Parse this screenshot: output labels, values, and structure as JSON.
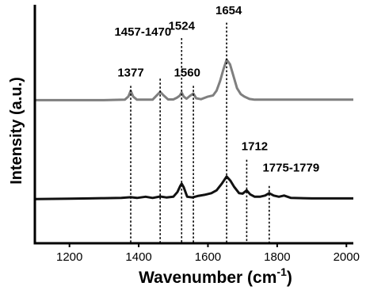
{
  "chart_data": {
    "type": "line",
    "xlabel": "Wavenumber (cm",
    "xlabel_superscript": "-1",
    "xlabel_suffix": ")",
    "ylabel": "Intensity (a.u.)",
    "xlim": [
      1100,
      2020
    ],
    "x_ticks": [
      1200,
      1400,
      1600,
      1800,
      2000
    ],
    "y_ticks": [],
    "grid": false,
    "legend": "none",
    "series": [
      {
        "color": "#7f7f7f",
        "points": [
          [
            1100,
            0.6
          ],
          [
            1300,
            0.6
          ],
          [
            1360,
            0.602
          ],
          [
            1370,
            0.615
          ],
          [
            1377,
            0.64
          ],
          [
            1384,
            0.615
          ],
          [
            1395,
            0.602
          ],
          [
            1440,
            0.602
          ],
          [
            1452,
            0.62
          ],
          [
            1462,
            0.635
          ],
          [
            1472,
            0.62
          ],
          [
            1485,
            0.603
          ],
          [
            1500,
            0.603
          ],
          [
            1510,
            0.61
          ],
          [
            1518,
            0.618
          ],
          [
            1524,
            0.632
          ],
          [
            1530,
            0.615
          ],
          [
            1538,
            0.606
          ],
          [
            1548,
            0.618
          ],
          [
            1558,
            0.628
          ],
          [
            1566,
            0.608
          ],
          [
            1580,
            0.604
          ],
          [
            1600,
            0.615
          ],
          [
            1615,
            0.62
          ],
          [
            1625,
            0.64
          ],
          [
            1635,
            0.68
          ],
          [
            1645,
            0.73
          ],
          [
            1654,
            0.77
          ],
          [
            1664,
            0.75
          ],
          [
            1674,
            0.7
          ],
          [
            1684,
            0.65
          ],
          [
            1695,
            0.625
          ],
          [
            1705,
            0.615
          ],
          [
            1720,
            0.605
          ],
          [
            1735,
            0.602
          ],
          [
            1800,
            0.602
          ],
          [
            2020,
            0.602
          ]
        ]
      },
      {
        "color": "#111111",
        "points": [
          [
            1100,
            0.185
          ],
          [
            1200,
            0.187
          ],
          [
            1260,
            0.188
          ],
          [
            1300,
            0.189
          ],
          [
            1350,
            0.19
          ],
          [
            1377,
            0.193
          ],
          [
            1395,
            0.19
          ],
          [
            1420,
            0.195
          ],
          [
            1440,
            0.19
          ],
          [
            1462,
            0.196
          ],
          [
            1480,
            0.192
          ],
          [
            1500,
            0.195
          ],
          [
            1512,
            0.215
          ],
          [
            1520,
            0.24
          ],
          [
            1524,
            0.25
          ],
          [
            1530,
            0.235
          ],
          [
            1540,
            0.195
          ],
          [
            1555,
            0.192
          ],
          [
            1570,
            0.198
          ],
          [
            1590,
            0.203
          ],
          [
            1610,
            0.21
          ],
          [
            1625,
            0.222
          ],
          [
            1640,
            0.25
          ],
          [
            1654,
            0.28
          ],
          [
            1665,
            0.262
          ],
          [
            1675,
            0.238
          ],
          [
            1690,
            0.21
          ],
          [
            1700,
            0.208
          ],
          [
            1712,
            0.222
          ],
          [
            1722,
            0.205
          ],
          [
            1735,
            0.195
          ],
          [
            1750,
            0.195
          ],
          [
            1765,
            0.2
          ],
          [
            1777,
            0.21
          ],
          [
            1790,
            0.2
          ],
          [
            1805,
            0.195
          ],
          [
            1820,
            0.2
          ],
          [
            1840,
            0.19
          ],
          [
            1900,
            0.188
          ],
          [
            2020,
            0.188
          ]
        ]
      }
    ],
    "annotations": [
      {
        "x": 1377,
        "label": "1377",
        "y_top": 0.66,
        "label_x": 1377,
        "label_y": 0.7
      },
      {
        "x": 1462,
        "label": "1457-1470",
        "y_top": 0.69,
        "label_x": 1412,
        "label_y": 0.87
      },
      {
        "x": 1524,
        "label": "1524",
        "y_top": 0.86,
        "label_x": 1524,
        "label_y": 0.895
      },
      {
        "x": 1558,
        "label": "1560",
        "y_top": 0.66,
        "label_x": 1540,
        "label_y": 0.7
      },
      {
        "x": 1654,
        "label": "1654",
        "y_top": 0.925,
        "label_x": 1660,
        "label_y": 0.96
      },
      {
        "x": 1712,
        "label": "1712",
        "y_top": 0.35,
        "label_x": 1735,
        "label_y": 0.39
      },
      {
        "x": 1777,
        "label": "1775-1779",
        "y_top": 0.24,
        "label_x": 1840,
        "label_y": 0.3
      }
    ]
  }
}
